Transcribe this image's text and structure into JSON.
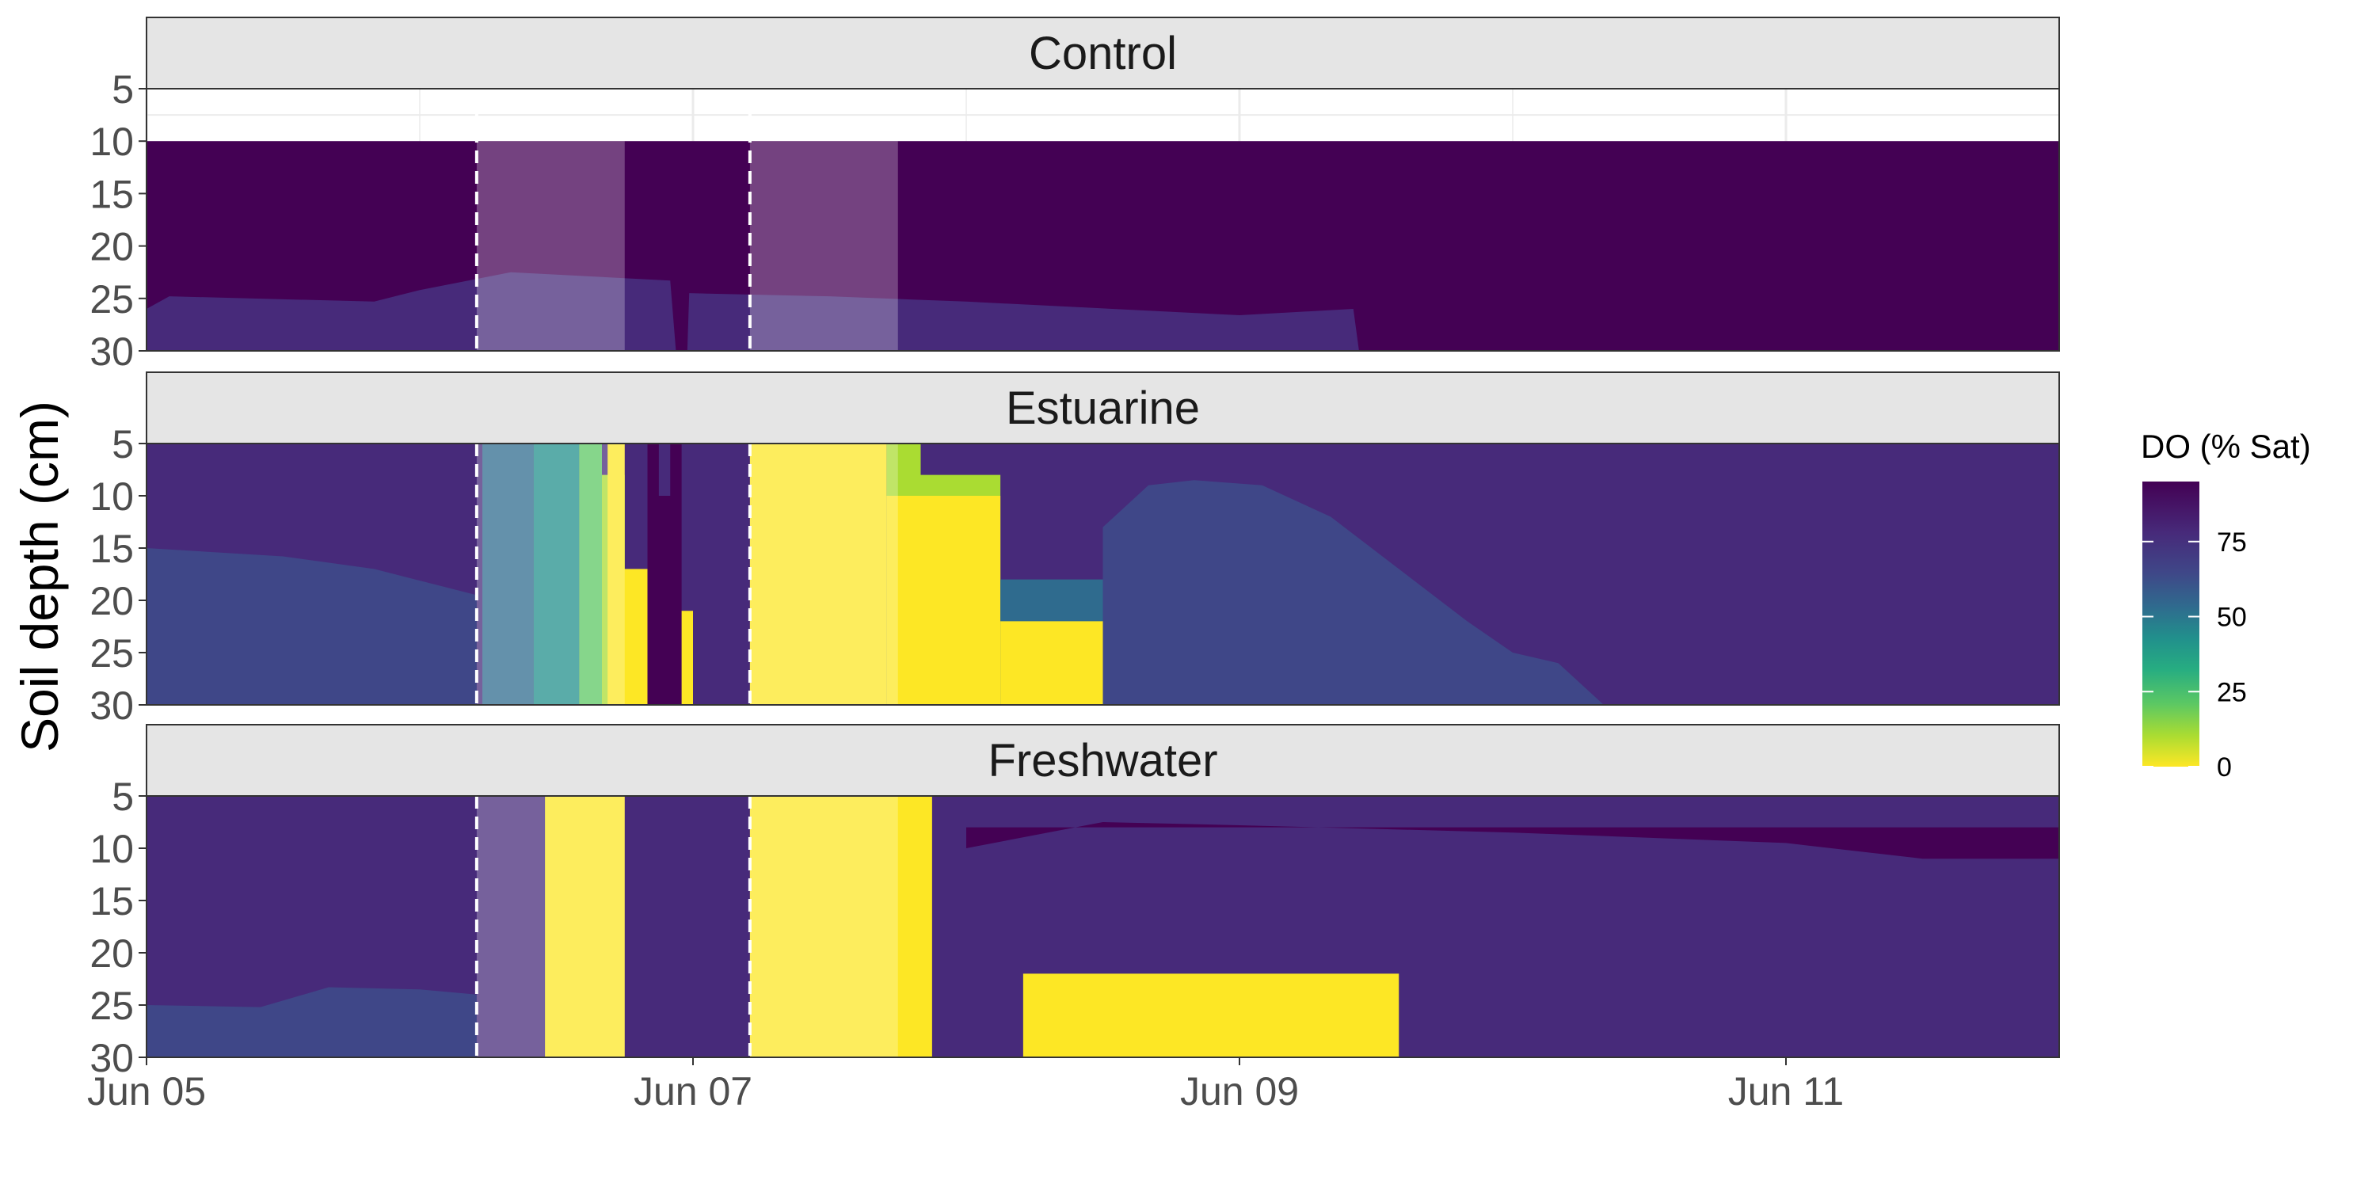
{
  "colors": {
    "do_100": "#440154",
    "do_85": "#472a7a",
    "do_70": "#3f4788",
    "do_60": "#2f6b8e",
    "do_50": "#21908c",
    "do_38": "#27ad81",
    "do_25": "#5cc863",
    "do_12": "#aadc32",
    "do_0": "#fde725",
    "flood_overlay": "rgba(255,255,255,0.26)",
    "strip_fill": "#e5e5e5",
    "strip_border": "#333333",
    "panel_border": "#333333",
    "event_line": "#ffffff",
    "grid": "#ebebeb"
  },
  "chart_data": {
    "type": "heatmap",
    "ylabel": "Soil depth (cm)",
    "x_range": [
      "2022-06-05",
      "2022-06-12"
    ],
    "x_ticks": [
      {
        "date": "2022-06-05",
        "label": "Jun 05"
      },
      {
        "date": "2022-06-07",
        "label": "Jun 07"
      },
      {
        "date": "2022-06-09",
        "label": "Jun 09"
      },
      {
        "date": "2022-06-11",
        "label": "Jun 11"
      }
    ],
    "y_range": [
      5,
      30
    ],
    "y_reversed": true,
    "y_ticks": [
      5,
      10,
      15,
      20,
      25,
      30
    ],
    "event_lines": [
      "2022-06-06T05:00",
      "2022-06-07T05:00"
    ],
    "flood_windows": [
      {
        "start": "2022-06-06T05:00",
        "end": "2022-06-06T18:00"
      },
      {
        "start": "2022-06-07T05:00",
        "end": "2022-06-07T18:00"
      }
    ],
    "legend": {
      "title": "DO (% Sat)",
      "ticks": [
        75,
        50,
        25,
        0
      ],
      "range": [
        0,
        95
      ],
      "position": "right"
    },
    "panels": [
      {
        "name": "Control",
        "missing_depths": [
          5,
          10
        ],
        "background_do": 100,
        "layers": [
          {
            "do": 85,
            "depth_max": 30,
            "boundary": [
              {
                "t": "2022-06-05T00:00",
                "d": 26
              },
              {
                "t": "2022-06-05T02:00",
                "d": 24.8
              },
              {
                "t": "2022-06-05T20:00",
                "d": 25.3
              },
              {
                "t": "2022-06-06T00:00",
                "d": 24.2
              },
              {
                "t": "2022-06-06T08:00",
                "d": 22.5
              },
              {
                "t": "2022-06-06T22:00",
                "d": 23.3
              },
              {
                "t": "2022-06-06T22:30",
                "d": 30
              },
              {
                "t": "2022-06-06T23:30",
                "d": 30
              },
              {
                "t": "2022-06-06T23:40",
                "d": 24.5
              },
              {
                "t": "2022-06-07T12:00",
                "d": 24.8
              },
              {
                "t": "2022-06-08T00:00",
                "d": 25.3
              },
              {
                "t": "2022-06-09T00:00",
                "d": 26.6
              },
              {
                "t": "2022-06-09T10:00",
                "d": 26
              },
              {
                "t": "2022-06-09T10:30",
                "d": 30
              }
            ]
          }
        ]
      },
      {
        "name": "Estuarine",
        "missing_depths": [],
        "background_do": 85,
        "layers": [
          {
            "do": 70,
            "depth_max": 30,
            "boundary": [
              {
                "t": "2022-06-05T00:00",
                "d": 15
              },
              {
                "t": "2022-06-05T12:00",
                "d": 15.8
              },
              {
                "t": "2022-06-05T20:00",
                "d": 17
              },
              {
                "t": "2022-06-06T05:00",
                "d": 19.5
              },
              {
                "t": "2022-06-06T05:00",
                "d": 30
              }
            ]
          },
          {
            "do": 100,
            "depth_max": 30,
            "boundary": [
              {
                "t": "2022-06-06T20:00",
                "d": 30
              },
              {
                "t": "2022-06-06T20:00",
                "d": 5
              },
              {
                "t": "2022-06-06T21:00",
                "d": 5
              },
              {
                "t": "2022-06-06T21:00",
                "d": 10
              },
              {
                "t": "2022-06-06T22:00",
                "d": 10
              },
              {
                "t": "2022-06-06T22:00",
                "d": 5
              },
              {
                "t": "2022-06-06T23:00",
                "d": 5
              },
              {
                "t": "2022-06-06T23:00",
                "d": 30
              }
            ]
          },
          {
            "do": 60,
            "depth_max": 30,
            "boundary": [
              {
                "t": "2022-06-06T05:30",
                "d": 30
              },
              {
                "t": "2022-06-06T05:30",
                "d": 5
              },
              {
                "t": "2022-06-06T10:00",
                "d": 5
              },
              {
                "t": "2022-06-06T10:00",
                "d": 30
              }
            ]
          },
          {
            "do": 50,
            "depth_max": 30,
            "boundary": [
              {
                "t": "2022-06-06T10:00",
                "d": 30
              },
              {
                "t": "2022-06-06T10:00",
                "d": 5
              },
              {
                "t": "2022-06-06T14:00",
                "d": 5
              },
              {
                "t": "2022-06-06T14:00",
                "d": 30
              }
            ]
          },
          {
            "do": 25,
            "depth_max": 30,
            "boundary": [
              {
                "t": "2022-06-06T14:00",
                "d": 30
              },
              {
                "t": "2022-06-06T14:00",
                "d": 5
              },
              {
                "t": "2022-06-06T16:00",
                "d": 5
              },
              {
                "t": "2022-06-06T16:00",
                "d": 30
              }
            ]
          },
          {
            "do": 12,
            "depth_max": 30,
            "boundary": [
              {
                "t": "2022-06-06T16:00",
                "d": 30
              },
              {
                "t": "2022-06-06T16:00",
                "d": 8
              },
              {
                "t": "2022-06-06T18:00",
                "d": 8
              },
              {
                "t": "2022-06-06T18:00",
                "d": 30
              }
            ]
          },
          {
            "do": 0,
            "depth_max": 30,
            "boundary": [
              {
                "t": "2022-06-06T16:30",
                "d": 30
              },
              {
                "t": "2022-06-06T16:30",
                "d": 5
              },
              {
                "t": "2022-06-06T18:00",
                "d": 5
              },
              {
                "t": "2022-06-06T18:00",
                "d": 17
              },
              {
                "t": "2022-06-06T20:00",
                "d": 17
              },
              {
                "t": "2022-06-06T20:00",
                "d": 30
              }
            ]
          },
          {
            "do": 0,
            "depth_max": 30,
            "boundary": [
              {
                "t": "2022-06-06T23:00",
                "d": 30
              },
              {
                "t": "2022-06-06T23:00",
                "d": 21
              },
              {
                "t": "2022-06-07T00:00",
                "d": 21
              },
              {
                "t": "2022-06-07T00:00",
                "d": 30
              }
            ]
          },
          {
            "do": 0,
            "depth_max": 30,
            "boundary": [
              {
                "t": "2022-06-07T05:00",
                "d": 30
              },
              {
                "t": "2022-06-07T05:00",
                "d": 5
              },
              {
                "t": "2022-06-07T17:00",
                "d": 5
              },
              {
                "t": "2022-06-07T17:00",
                "d": 30
              }
            ]
          },
          {
            "do": 12,
            "depth_max": 30,
            "boundary": [
              {
                "t": "2022-06-07T17:00",
                "d": 30
              },
              {
                "t": "2022-06-07T17:00",
                "d": 5
              },
              {
                "t": "2022-06-07T20:00",
                "d": 5
              },
              {
                "t": "2022-06-07T20:00",
                "d": 8
              },
              {
                "t": "2022-06-08T03:00",
                "d": 8
              },
              {
                "t": "2022-06-08T03:00",
                "d": 30
              }
            ]
          },
          {
            "do": 0,
            "depth_max": 30,
            "boundary": [
              {
                "t": "2022-06-07T17:00",
                "d": 30
              },
              {
                "t": "2022-06-07T17:00",
                "d": 10
              },
              {
                "t": "2022-06-08T03:00",
                "d": 10
              },
              {
                "t": "2022-06-08T03:00",
                "d": 30
              }
            ]
          },
          {
            "do": 50,
            "depth_max": 30,
            "boundary": [
              {
                "t": "2022-06-08T12:00",
                "d": 30
              },
              {
                "t": "2022-06-08T12:00",
                "d": 16
              },
              {
                "t": "2022-06-08T12:00",
                "d": 16
              },
              {
                "t": "2022-06-08T12:00",
                "d": 30
              }
            ]
          },
          {
            "do": 60,
            "depth_max": 30,
            "boundary": [
              {
                "t": "2022-06-08T03:00",
                "d": 30
              },
              {
                "t": "2022-06-08T03:00",
                "d": 18
              },
              {
                "t": "2022-06-08T12:00",
                "d": 18
              },
              {
                "t": "2022-06-08T12:00",
                "d": 30
              }
            ]
          },
          {
            "do": 0,
            "depth_max": 30,
            "boundary": [
              {
                "t": "2022-06-08T03:00",
                "d": 30
              },
              {
                "t": "2022-06-08T03:00",
                "d": 22
              },
              {
                "t": "2022-06-08T12:00",
                "d": 22
              },
              {
                "t": "2022-06-08T12:00",
                "d": 30
              }
            ]
          },
          {
            "do": 70,
            "depth_max": 30,
            "boundary": [
              {
                "t": "2022-06-08T12:00",
                "d": 30
              },
              {
                "t": "2022-06-08T12:00",
                "d": 13
              },
              {
                "t": "2022-06-08T16:00",
                "d": 9
              },
              {
                "t": "2022-06-08T20:00",
                "d": 8.5
              },
              {
                "t": "2022-06-09T02:00",
                "d": 9
              },
              {
                "t": "2022-06-09T08:00",
                "d": 12
              },
              {
                "t": "2022-06-09T14:00",
                "d": 17
              },
              {
                "t": "2022-06-09T20:00",
                "d": 22
              },
              {
                "t": "2022-06-10T00:00",
                "d": 25
              },
              {
                "t": "2022-06-10T04:00",
                "d": 26
              },
              {
                "t": "2022-06-10T08:00",
                "d": 30
              }
            ]
          }
        ]
      },
      {
        "name": "Freshwater",
        "missing_depths": [],
        "background_do": 85,
        "layers": [
          {
            "do": 100,
            "depth_max": 8,
            "boundary": [
              {
                "t": "2022-06-08T00:00",
                "d": 10
              },
              {
                "t": "2022-06-08T12:00",
                "d": 7.5
              },
              {
                "t": "2022-06-09T00:00",
                "d": 7.8
              },
              {
                "t": "2022-06-10T00:00",
                "d": 8.5
              },
              {
                "t": "2022-06-11T00:00",
                "d": 9.5
              },
              {
                "t": "2022-06-11T12:00",
                "d": 11
              },
              {
                "t": "2022-06-12T00:00",
                "d": 11
              }
            ]
          },
          {
            "do": 70,
            "depth_max": 30,
            "boundary": [
              {
                "t": "2022-06-05T00:00",
                "d": 25
              },
              {
                "t": "2022-06-05T10:00",
                "d": 25.2
              },
              {
                "t": "2022-06-05T16:00",
                "d": 23.3
              },
              {
                "t": "2022-06-06T00:00",
                "d": 23.5
              },
              {
                "t": "2022-06-06T05:00",
                "d": 24
              },
              {
                "t": "2022-06-06T05:00",
                "d": 30
              }
            ]
          },
          {
            "do": 0,
            "depth_max": 30,
            "boundary": [
              {
                "t": "2022-06-06T11:00",
                "d": 30
              },
              {
                "t": "2022-06-06T11:00",
                "d": 5
              },
              {
                "t": "2022-06-06T18:00",
                "d": 5
              },
              {
                "t": "2022-06-06T18:00",
                "d": 30
              }
            ]
          },
          {
            "do": 0,
            "depth_max": 30,
            "boundary": [
              {
                "t": "2022-06-07T05:00",
                "d": 30
              },
              {
                "t": "2022-06-07T05:00",
                "d": 5
              },
              {
                "t": "2022-06-07T21:00",
                "d": 5
              },
              {
                "t": "2022-06-07T21:00",
                "d": 30
              }
            ]
          },
          {
            "do": 0,
            "depth_max": 30,
            "boundary": [
              {
                "t": "2022-06-08T05:00",
                "d": 30
              },
              {
                "t": "2022-06-08T05:00",
                "d": 22
              },
              {
                "t": "2022-06-09T14:00",
                "d": 22
              },
              {
                "t": "2022-06-09T14:00",
                "d": 30
              }
            ]
          }
        ]
      }
    ]
  }
}
